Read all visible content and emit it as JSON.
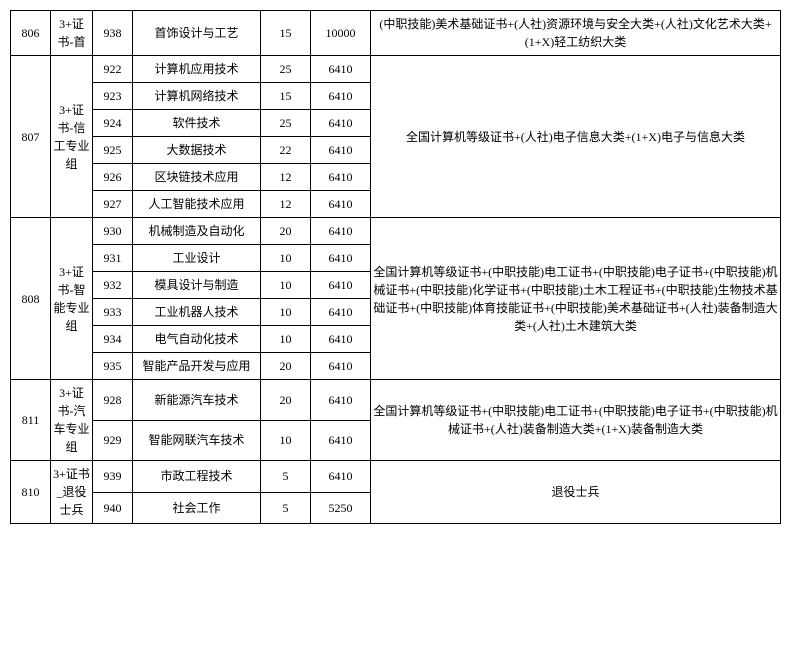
{
  "columns": {
    "code_width": 40,
    "group_width": 42,
    "subcode_width": 40,
    "name_width": 128,
    "num1_width": 50,
    "num2_width": 60,
    "req_width": 410
  },
  "groups": [
    {
      "code": "806",
      "group_name": "3+证书-首",
      "requirement": "(中职技能)美术基础证书+(人社)资源环境与安全大类+(人社)文化艺术大类+(1+X)轻工纺织大类",
      "truncated": true,
      "rows": [
        {
          "subcode": "938",
          "name": "首饰设计与工艺",
          "num1": "15",
          "num2": "10000"
        }
      ]
    },
    {
      "code": "807",
      "group_name": "3+证书-信工专业组",
      "requirement": "全国计算机等级证书+(人社)电子信息大类+(1+X)电子与信息大类",
      "rows": [
        {
          "subcode": "922",
          "name": "计算机应用技术",
          "num1": "25",
          "num2": "6410"
        },
        {
          "subcode": "923",
          "name": "计算机网络技术",
          "num1": "15",
          "num2": "6410"
        },
        {
          "subcode": "924",
          "name": "软件技术",
          "num1": "25",
          "num2": "6410"
        },
        {
          "subcode": "925",
          "name": "大数据技术",
          "num1": "22",
          "num2": "6410"
        },
        {
          "subcode": "926",
          "name": "区块链技术应用",
          "num1": "12",
          "num2": "6410"
        },
        {
          "subcode": "927",
          "name": "人工智能技术应用",
          "num1": "12",
          "num2": "6410"
        }
      ]
    },
    {
      "code": "808",
      "group_name": "3+证书-智能专业组",
      "requirement": "全国计算机等级证书+(中职技能)电工证书+(中职技能)电子证书+(中职技能)机械证书+(中职技能)化学证书+(中职技能)土木工程证书+(中职技能)生物技术基础证书+(中职技能)体育技能证书+(中职技能)美术基础证书+(人社)装备制造大类+(人社)土木建筑大类",
      "rows": [
        {
          "subcode": "930",
          "name": "机械制造及自动化",
          "num1": "20",
          "num2": "6410"
        },
        {
          "subcode": "931",
          "name": "工业设计",
          "num1": "10",
          "num2": "6410"
        },
        {
          "subcode": "932",
          "name": "模具设计与制造",
          "num1": "10",
          "num2": "6410"
        },
        {
          "subcode": "933",
          "name": "工业机器人技术",
          "num1": "10",
          "num2": "6410"
        },
        {
          "subcode": "934",
          "name": "电气自动化技术",
          "num1": "10",
          "num2": "6410"
        },
        {
          "subcode": "935",
          "name": "智能产品开发与应用",
          "num1": "20",
          "num2": "6410"
        }
      ]
    },
    {
      "code": "811",
      "group_name": "3+证书-汽车专业组",
      "requirement": "全国计算机等级证书+(中职技能)电工证书+(中职技能)电子证书+(中职技能)机械证书+(人社)装备制造大类+(1+X)装备制造大类",
      "rows": [
        {
          "subcode": "928",
          "name": "新能源汽车技术",
          "num1": "20",
          "num2": "6410"
        },
        {
          "subcode": "929",
          "name": "智能网联汽车技术",
          "num1": "10",
          "num2": "6410"
        }
      ]
    },
    {
      "code": "810",
      "group_name": "3+证书_退役士兵",
      "requirement": "退役士兵",
      "rows": [
        {
          "subcode": "939",
          "name": "市政工程技术",
          "num1": "5",
          "num2": "6410"
        },
        {
          "subcode": "940",
          "name": "社会工作",
          "num1": "5",
          "num2": "5250"
        }
      ]
    }
  ]
}
